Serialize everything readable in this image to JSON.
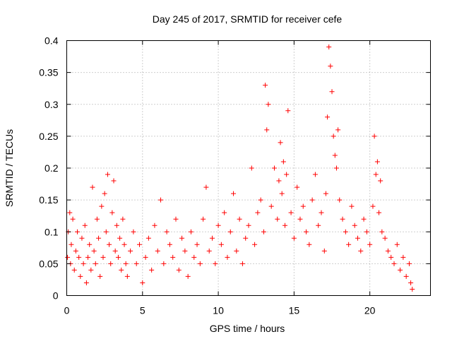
{
  "chart_data": {
    "type": "scatter",
    "title": "Day 245 of 2017, SRMTID for receiver cefe",
    "xlabel": "GPS time / hours",
    "ylabel": "SRMTID / TECUs",
    "xlim": [
      0,
      24
    ],
    "ylim": [
      0,
      0.4
    ],
    "xticks": [
      0,
      5,
      10,
      15,
      20
    ],
    "xtick_labels": [
      "0",
      "5",
      "10",
      "15",
      "20"
    ],
    "yticks": [
      0,
      0.05,
      0.1,
      0.15,
      0.2,
      0.25,
      0.3,
      0.35,
      0.4
    ],
    "ytick_labels": [
      "0",
      "0.05",
      "0.1",
      "0.15",
      "0.2",
      "0.25",
      "0.3",
      "0.35",
      "0.4"
    ],
    "grid": true,
    "marker": "+",
    "color": "#ff0000",
    "series": [
      {
        "name": "SRMTID",
        "x": [
          0.05,
          0.1,
          0.2,
          0.25,
          0.3,
          0.4,
          0.5,
          0.6,
          0.7,
          0.8,
          0.9,
          1.0,
          1.1,
          1.2,
          1.3,
          1.4,
          1.5,
          1.6,
          1.7,
          1.8,
          1.9,
          2.0,
          2.1,
          2.2,
          2.3,
          2.4,
          2.5,
          2.6,
          2.7,
          2.8,
          2.9,
          3.0,
          3.1,
          3.2,
          3.3,
          3.4,
          3.5,
          3.6,
          3.7,
          3.8,
          3.9,
          4.0,
          4.2,
          4.4,
          4.6,
          4.8,
          5.0,
          5.2,
          5.4,
          5.6,
          5.8,
          6.0,
          6.2,
          6.4,
          6.6,
          6.8,
          7.0,
          7.2,
          7.4,
          7.6,
          7.8,
          8.0,
          8.2,
          8.4,
          8.6,
          8.8,
          9.0,
          9.2,
          9.4,
          9.6,
          9.8,
          10.0,
          10.2,
          10.4,
          10.6,
          10.8,
          11.0,
          11.2,
          11.4,
          11.6,
          11.8,
          12.0,
          12.2,
          12.4,
          12.6,
          12.8,
          13.0,
          13.1,
          13.2,
          13.3,
          13.5,
          13.7,
          13.9,
          14.0,
          14.1,
          14.2,
          14.3,
          14.4,
          14.5,
          14.6,
          14.8,
          15.0,
          15.2,
          15.4,
          15.6,
          15.8,
          16.0,
          16.2,
          16.4,
          16.6,
          16.8,
          17.0,
          17.1,
          17.2,
          17.3,
          17.4,
          17.5,
          17.6,
          17.7,
          17.8,
          17.9,
          18.0,
          18.2,
          18.4,
          18.6,
          18.8,
          19.0,
          19.2,
          19.4,
          19.6,
          19.8,
          20.0,
          20.2,
          20.3,
          20.4,
          20.5,
          20.6,
          20.7,
          20.8,
          21.0,
          21.2,
          21.4,
          21.6,
          21.8,
          22.0,
          22.2,
          22.4,
          22.6,
          22.7,
          22.8
        ],
        "y": [
          0.06,
          0.1,
          0.13,
          0.05,
          0.08,
          0.12,
          0.04,
          0.07,
          0.1,
          0.06,
          0.03,
          0.09,
          0.05,
          0.11,
          0.02,
          0.06,
          0.08,
          0.04,
          0.17,
          0.07,
          0.05,
          0.12,
          0.09,
          0.03,
          0.14,
          0.06,
          0.16,
          0.1,
          0.19,
          0.08,
          0.05,
          0.13,
          0.18,
          0.07,
          0.11,
          0.06,
          0.09,
          0.04,
          0.12,
          0.08,
          0.05,
          0.03,
          0.07,
          0.1,
          0.05,
          0.08,
          0.02,
          0.06,
          0.09,
          0.04,
          0.11,
          0.07,
          0.15,
          0.05,
          0.1,
          0.08,
          0.06,
          0.12,
          0.04,
          0.09,
          0.07,
          0.03,
          0.1,
          0.06,
          0.08,
          0.05,
          0.12,
          0.17,
          0.07,
          0.09,
          0.05,
          0.11,
          0.08,
          0.13,
          0.06,
          0.1,
          0.16,
          0.07,
          0.12,
          0.05,
          0.09,
          0.11,
          0.2,
          0.08,
          0.13,
          0.15,
          0.1,
          0.33,
          0.26,
          0.3,
          0.14,
          0.2,
          0.12,
          0.18,
          0.24,
          0.16,
          0.21,
          0.11,
          0.19,
          0.29,
          0.13,
          0.09,
          0.17,
          0.12,
          0.14,
          0.1,
          0.08,
          0.15,
          0.19,
          0.11,
          0.13,
          0.07,
          0.16,
          0.28,
          0.39,
          0.36,
          0.32,
          0.25,
          0.22,
          0.2,
          0.26,
          0.15,
          0.12,
          0.1,
          0.08,
          0.14,
          0.11,
          0.09,
          0.07,
          0.12,
          0.1,
          0.08,
          0.14,
          0.25,
          0.19,
          0.21,
          0.13,
          0.18,
          0.1,
          0.09,
          0.07,
          0.06,
          0.05,
          0.08,
          0.04,
          0.06,
          0.03,
          0.05,
          0.02,
          0.01
        ]
      }
    ]
  }
}
